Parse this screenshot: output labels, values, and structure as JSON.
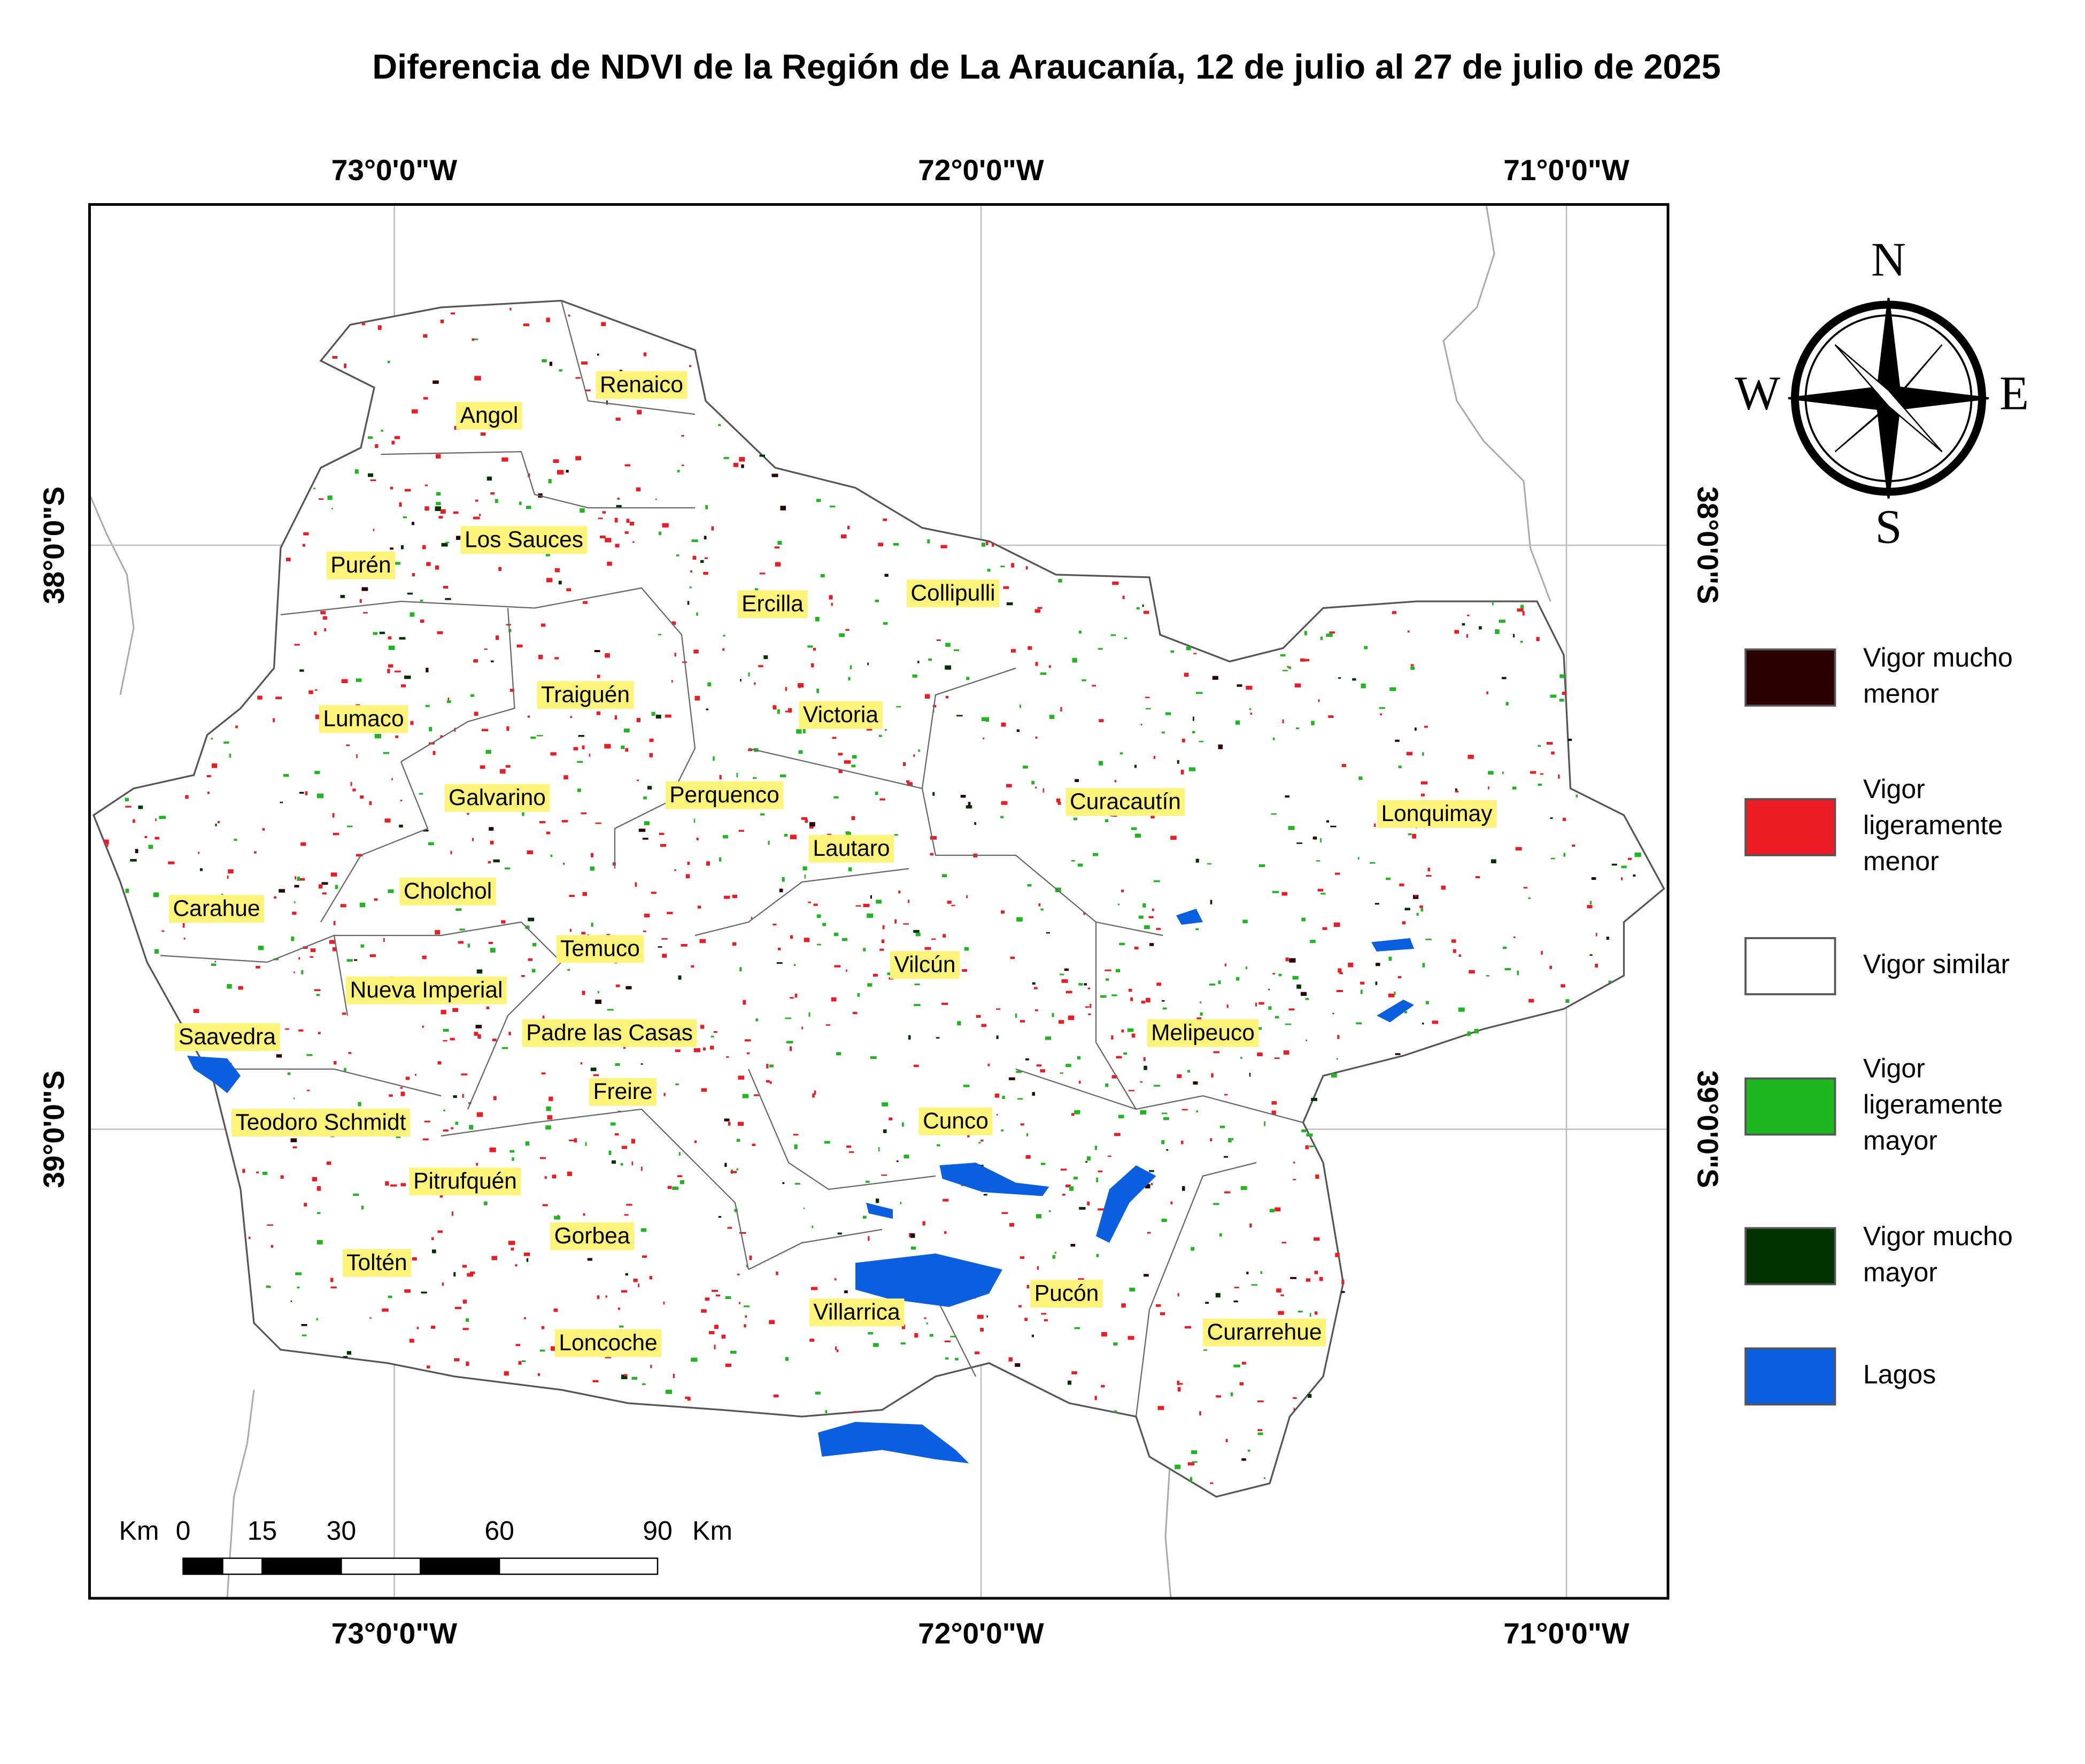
{
  "title": "Diferencia de NDVI de la Región de La Araucanía, 12 de julio al 27 de julio de 2025",
  "longitude_labels": [
    "73°0'0\"W",
    "72°0'0\"W",
    "71°0'0\"W"
  ],
  "latitude_labels": [
    "38°0'0\"S",
    "39°0'0\"S"
  ],
  "compass": {
    "north": "N",
    "south": "S",
    "west": "W",
    "east": "E"
  },
  "communes": [
    "Renaico",
    "Angol",
    "Los Sauces",
    "Purén",
    "Ercilla",
    "Collipulli",
    "Traiguén",
    "Victoria",
    "Lumaco",
    "Galvarino",
    "Perquenco",
    "Curacautín",
    "Lonquimay",
    "Lautaro",
    "Cholchol",
    "Carahue",
    "Temuco",
    "Vilcún",
    "Nueva Imperial",
    "Saavedra",
    "Padre las Casas",
    "Melipeuco",
    "Freire",
    "Teodoro Schmidt",
    "Cunco",
    "Pitrufquén",
    "Gorbea",
    "Toltén",
    "Villarrica",
    "Pucón",
    "Curarrehue",
    "Loncoche"
  ],
  "legend": {
    "items": [
      {
        "label": [
          "Vigor mucho",
          "menor"
        ],
        "color": "#2b0000"
      },
      {
        "label": [
          "Vigor",
          "ligeramente",
          "menor"
        ],
        "color": "#ed1c24"
      },
      {
        "label": [
          "Vigor similar"
        ],
        "color": "#ffffff"
      },
      {
        "label": [
          "Vigor",
          "ligeramente",
          "mayor"
        ],
        "color": "#1fb71f"
      },
      {
        "label": [
          "Vigor mucho",
          "mayor"
        ],
        "color": "#003300"
      },
      {
        "label": [
          "Lagos"
        ],
        "color": "#0a5fe0"
      }
    ]
  },
  "scale_bar": {
    "unit": "Km",
    "ticks": [
      0,
      15,
      30,
      60,
      90
    ]
  }
}
